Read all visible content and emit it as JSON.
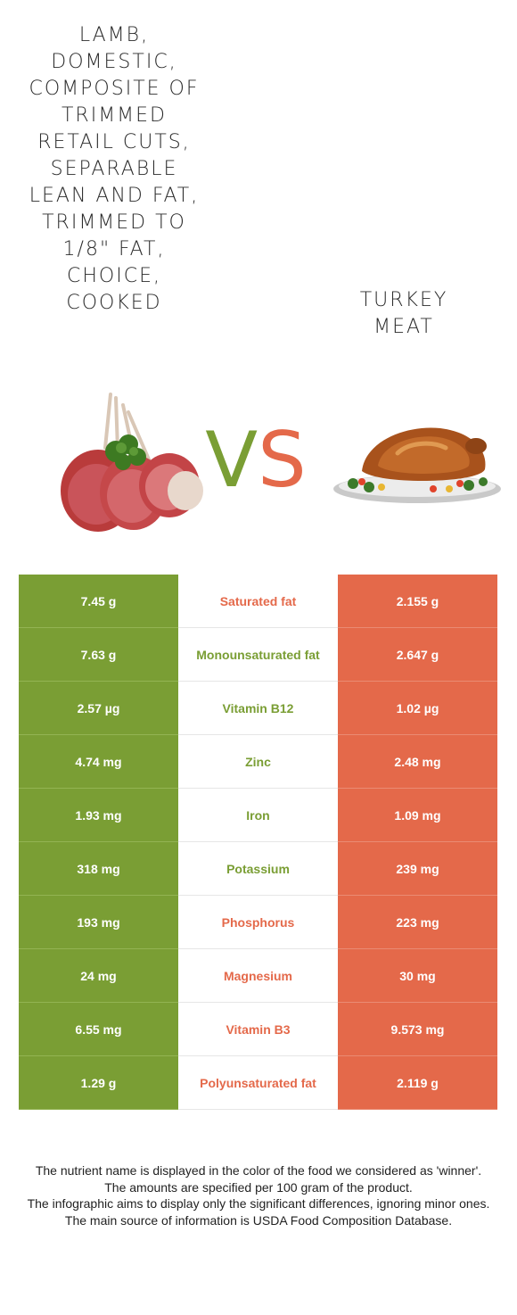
{
  "food_a": {
    "name": "Lamb, domestic, composite of trimmed retail cuts, separable lean and fat, trimmed to 1/8\" fat, choice, cooked",
    "color": "#7a9e34"
  },
  "food_b": {
    "name": "Turkey meat",
    "color": "#e4694a"
  },
  "vs": {
    "v": "V",
    "s": "S"
  },
  "rows": [
    {
      "a": "7.45 g",
      "nutrient": "Saturated fat",
      "b": "2.155 g",
      "winner": "b"
    },
    {
      "a": "7.63 g",
      "nutrient": "Monounsaturated fat",
      "b": "2.647 g",
      "winner": "a"
    },
    {
      "a": "2.57 µg",
      "nutrient": "Vitamin B12",
      "b": "1.02 µg",
      "winner": "a"
    },
    {
      "a": "4.74 mg",
      "nutrient": "Zinc",
      "b": "2.48 mg",
      "winner": "a"
    },
    {
      "a": "1.93 mg",
      "nutrient": "Iron",
      "b": "1.09 mg",
      "winner": "a"
    },
    {
      "a": "318 mg",
      "nutrient": "Potassium",
      "b": "239 mg",
      "winner": "a"
    },
    {
      "a": "193 mg",
      "nutrient": "Phosphorus",
      "b": "223 mg",
      "winner": "b"
    },
    {
      "a": "24 mg",
      "nutrient": "Magnesium",
      "b": "30 mg",
      "winner": "b"
    },
    {
      "a": "6.55 mg",
      "nutrient": "Vitamin B3",
      "b": "9.573 mg",
      "winner": "b"
    },
    {
      "a": "1.29 g",
      "nutrient": "Polyunsaturated fat",
      "b": "2.119 g",
      "winner": "b"
    }
  ],
  "footer": [
    "The nutrient name is displayed in the color of the food we considered as 'winner'.",
    "The amounts are specified per 100 gram of the product.",
    "The infographic aims to display only the significant differences, ignoring minor ones.",
    "The main source of information is USDA Food Composition Database."
  ]
}
